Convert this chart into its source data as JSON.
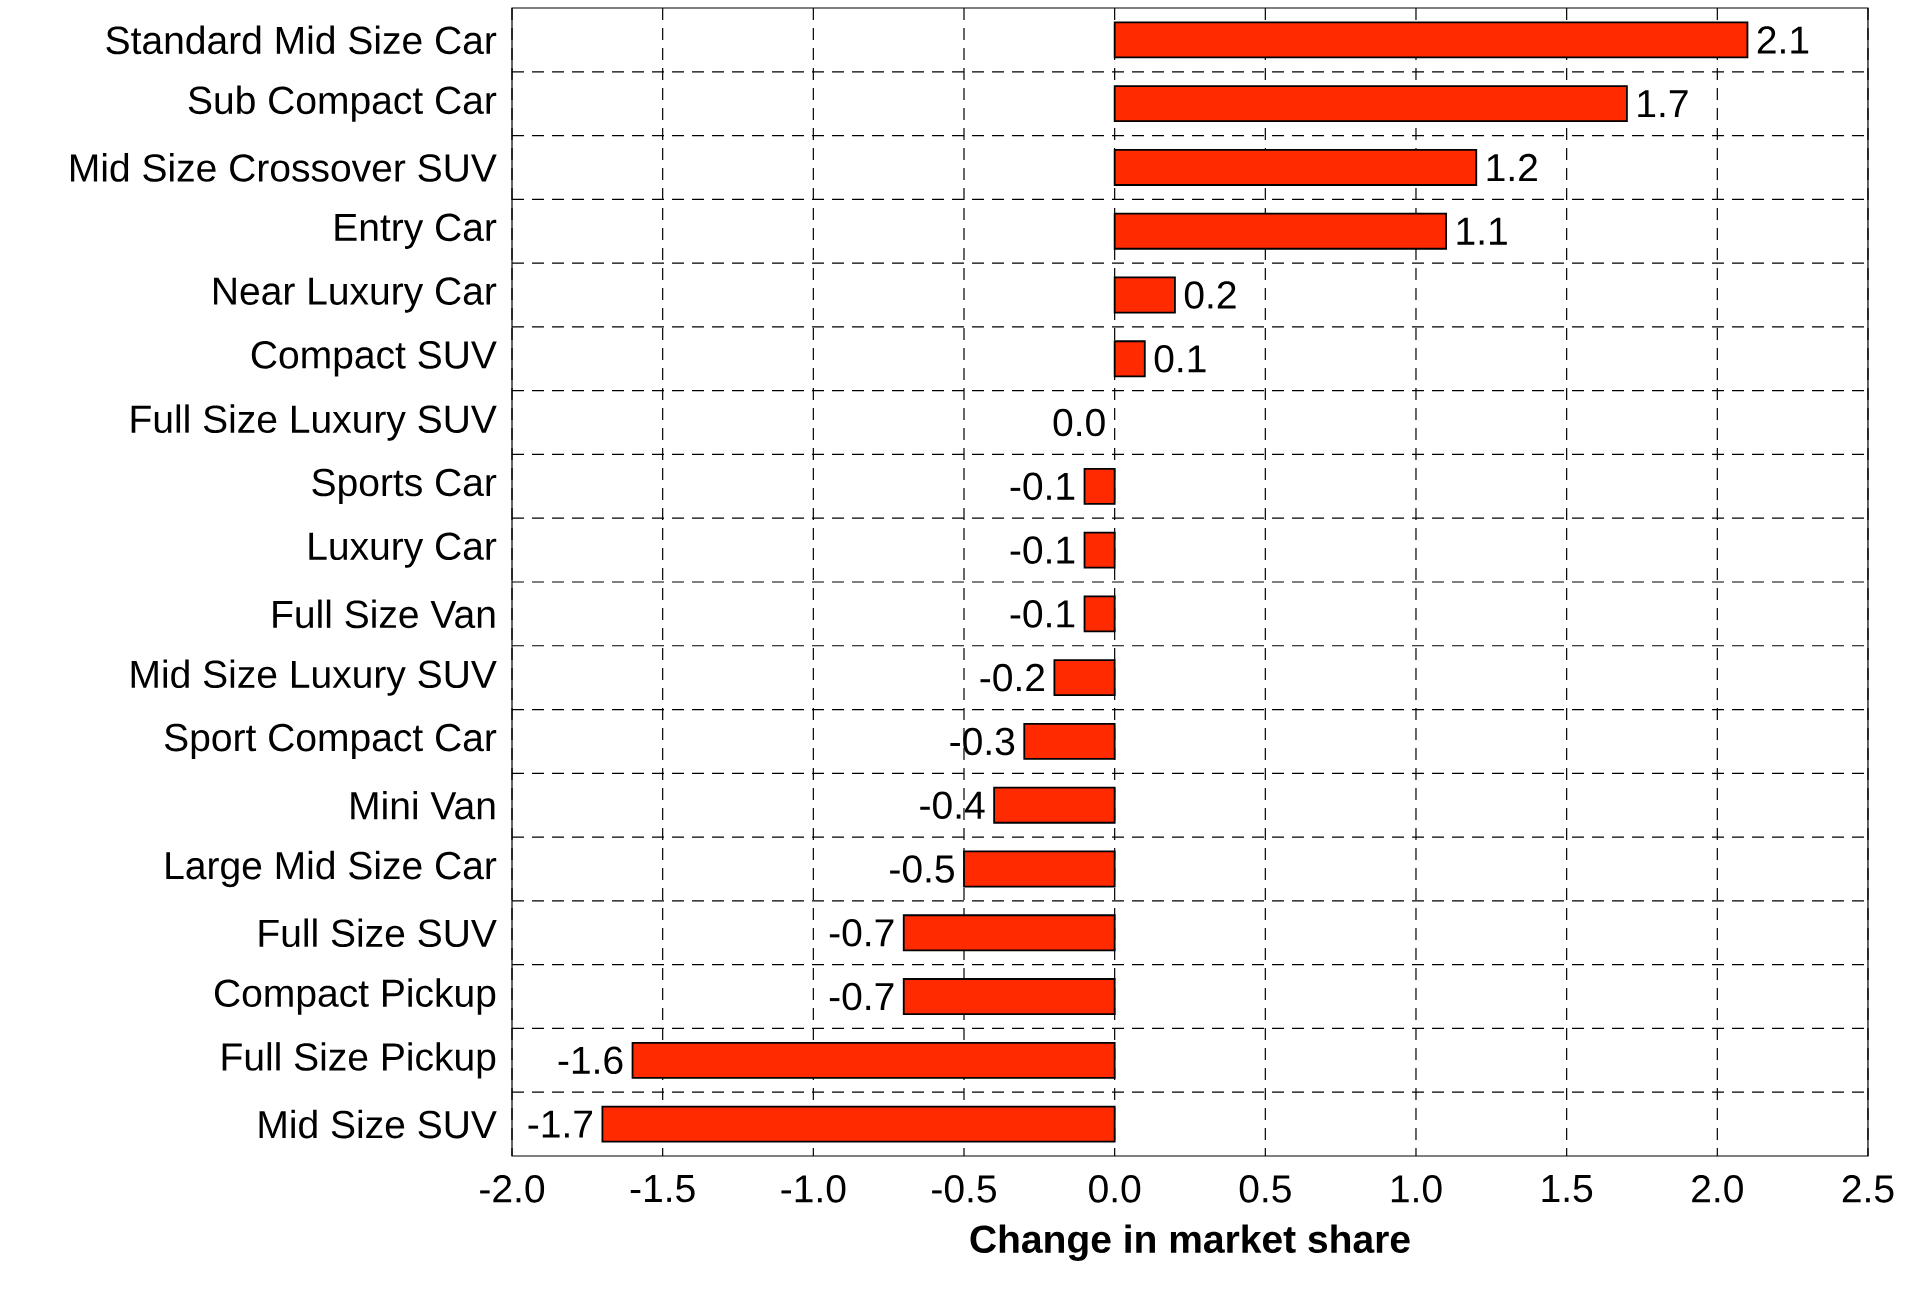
{
  "chart_data": {
    "type": "bar",
    "orientation": "horizontal",
    "xlabel": "Change in market share",
    "categories": [
      "Standard Mid Size Car",
      "Sub Compact Car",
      "Mid Size Crossover SUV",
      "Entry Car",
      "Near Luxury Car",
      "Compact SUV",
      "Full Size Luxury SUV",
      "Sports Car",
      "Luxury Car",
      "Full Size Van",
      "Mid Size Luxury SUV",
      "Sport Compact Car",
      "Mini Van",
      "Large Mid Size Car",
      "Full Size SUV",
      "Compact Pickup",
      "Full Size Pickup",
      "Mid Size SUV"
    ],
    "values": [
      2.1,
      1.7,
      1.2,
      1.1,
      0.2,
      0.1,
      0.0,
      -0.1,
      -0.1,
      -0.1,
      -0.2,
      -0.3,
      -0.4,
      -0.5,
      -0.7,
      -0.7,
      -1.6,
      -1.7
    ],
    "value_labels": [
      "2.1",
      "1.7",
      "1.2",
      "1.1",
      "0.2",
      "0.1",
      "0.0",
      "-0.1",
      "-0.1",
      "-0.1",
      "-0.2",
      "-0.3",
      "-0.4",
      "-0.5",
      "-0.7",
      "-0.7",
      "-1.6",
      "-1.7"
    ],
    "color": "#ff2a00",
    "xlim": [
      -2.0,
      2.5
    ],
    "xticks": [
      {
        "value": -2.0,
        "label": "-2.0"
      },
      {
        "value": -1.5,
        "label": "-1.5"
      },
      {
        "value": -1.0,
        "label": "-1.0"
      },
      {
        "value": -0.5,
        "label": "-0.5"
      },
      {
        "value": 0.0,
        "label": "0.0"
      },
      {
        "value": 0.5,
        "label": "0.5"
      },
      {
        "value": 1.0,
        "label": "1.0"
      },
      {
        "value": 1.5,
        "label": "1.5"
      },
      {
        "value": 2.0,
        "label": "2.0"
      },
      {
        "value": 2.5,
        "label": "2.5"
      }
    ],
    "grid": true
  }
}
